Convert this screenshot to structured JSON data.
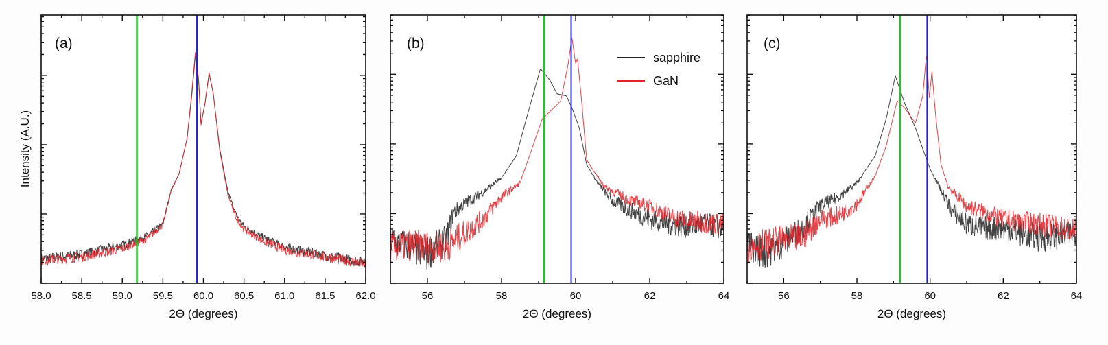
{
  "chart_data": [
    {
      "type": "line",
      "panel_label": "(a)",
      "xlabel": "2Θ (degrees)",
      "ylabel": "Intensity (A.U.)",
      "yscale": "log",
      "y_units_note": "log10 intensity (arbitrary)",
      "xlim": [
        58.0,
        62.0
      ],
      "ylim": [
        0,
        3.87
      ],
      "xticks": [
        58.0,
        58.5,
        59.0,
        59.5,
        60.0,
        60.5,
        61.0,
        61.5,
        62.0
      ],
      "xtick_labels": [
        "58.0",
        "58.5",
        "59.0",
        "59.5",
        "60.0",
        "60.5",
        "61.0",
        "61.5",
        "62.0"
      ],
      "xminor_step": 0.25,
      "reference_lines": [
        {
          "x": 59.18,
          "color": "#22c32a"
        },
        {
          "x": 59.92,
          "color": "#2222d6"
        }
      ],
      "legend": null,
      "series": [
        {
          "name": "sapphire",
          "color": "#222222",
          "x": [
            58.0,
            58.5,
            59.0,
            59.3,
            59.5,
            59.6,
            59.7,
            59.8,
            59.86,
            59.9,
            59.94,
            59.97,
            60.02,
            60.07,
            60.12,
            60.2,
            60.3,
            60.4,
            60.5,
            60.75,
            61.0,
            61.5,
            62.0
          ],
          "y": [
            0.35,
            0.42,
            0.55,
            0.68,
            0.85,
            1.34,
            1.58,
            2.1,
            2.75,
            3.28,
            2.95,
            2.3,
            2.6,
            3.02,
            2.75,
            1.95,
            1.33,
            1.0,
            0.82,
            0.65,
            0.52,
            0.4,
            0.3
          ]
        },
        {
          "name": "GaN",
          "color": "#e0242a",
          "x": [
            58.0,
            58.5,
            59.0,
            59.3,
            59.5,
            59.6,
            59.7,
            59.8,
            59.86,
            59.9,
            59.94,
            59.97,
            60.02,
            60.07,
            60.12,
            60.2,
            60.3,
            60.4,
            60.5,
            60.75,
            61.0,
            61.5,
            62.0
          ],
          "y": [
            0.33,
            0.38,
            0.5,
            0.64,
            0.84,
            1.33,
            1.58,
            2.1,
            2.8,
            3.33,
            2.95,
            2.28,
            2.6,
            3.04,
            2.75,
            1.92,
            1.28,
            0.95,
            0.78,
            0.6,
            0.48,
            0.38,
            0.28
          ]
        }
      ]
    },
    {
      "type": "line",
      "panel_label": "(b)",
      "xlabel": "2Θ (degrees)",
      "yscale": "log",
      "xlim": [
        55,
        64
      ],
      "ylim": [
        0,
        3.85
      ],
      "xticks": [
        56,
        58,
        60,
        62,
        64
      ],
      "xtick_labels": [
        "56",
        "58",
        "60",
        "62",
        "64"
      ],
      "xminor_step": 1,
      "reference_lines": [
        {
          "x": 59.15,
          "color": "#22c32a"
        },
        {
          "x": 59.88,
          "color": "#2222d6"
        }
      ],
      "legend": {
        "position": "top-right",
        "entries": [
          "sapphire",
          "GaN"
        ]
      },
      "series": [
        {
          "name": "sapphire",
          "color": "#222222",
          "x": [
            55,
            55.5,
            56,
            56.5,
            56.7,
            57,
            57.5,
            58,
            58.4,
            58.7,
            59.05,
            59.3,
            59.5,
            59.75,
            59.9,
            60.1,
            60.3,
            60.6,
            61,
            61.5,
            62,
            62.5,
            63,
            63.5,
            64
          ],
          "y": [
            0.62,
            0.52,
            0.42,
            0.62,
            1.01,
            1.14,
            1.31,
            1.51,
            1.83,
            2.42,
            3.08,
            2.92,
            2.72,
            2.69,
            2.52,
            2.23,
            1.7,
            1.44,
            1.18,
            1.04,
            0.92,
            0.85,
            0.82,
            0.85,
            0.79
          ]
        },
        {
          "name": "GaN",
          "color": "#e0242a",
          "x": [
            55,
            55.5,
            56,
            56.5,
            57,
            57.5,
            58,
            58.5,
            58.8,
            59.1,
            59.3,
            59.6,
            59.8,
            59.9,
            60.0,
            60.05,
            60.15,
            60.3,
            60.5,
            60.8,
            61.5,
            62,
            62.5,
            63,
            64
          ],
          "y": [
            0.52,
            0.55,
            0.52,
            0.52,
            0.72,
            0.92,
            1.24,
            1.44,
            1.9,
            2.36,
            2.46,
            2.62,
            3.15,
            3.53,
            3.15,
            3.23,
            2.69,
            1.77,
            1.6,
            1.38,
            1.18,
            1.11,
            0.97,
            0.9,
            0.85
          ]
        }
      ]
    },
    {
      "type": "line",
      "panel_label": "(c)",
      "xlabel": "2Θ (degrees)",
      "yscale": "log",
      "xlim": [
        55,
        64
      ],
      "ylim": [
        0,
        3.85
      ],
      "xticks": [
        56,
        58,
        60,
        62,
        64
      ],
      "xtick_labels": [
        "56",
        "58",
        "60",
        "62",
        "64"
      ],
      "xminor_step": 1,
      "reference_lines": [
        {
          "x": 59.18,
          "color": "#22c32a"
        },
        {
          "x": 59.92,
          "color": "#2222d6"
        }
      ],
      "legend": null,
      "series": [
        {
          "name": "sapphire",
          "color": "#222222",
          "x": [
            55,
            55.5,
            56,
            56.5,
            57,
            57.5,
            58,
            58.5,
            58.8,
            59.05,
            59.3,
            59.6,
            59.8,
            60.0,
            60.3,
            60.6,
            61,
            61.5,
            62,
            63,
            64
          ],
          "y": [
            0.55,
            0.45,
            0.59,
            0.79,
            1.11,
            1.24,
            1.44,
            1.83,
            2.36,
            2.98,
            2.59,
            2.23,
            1.93,
            1.64,
            1.34,
            1.04,
            0.85,
            0.79,
            0.79,
            0.65,
            0.72
          ]
        },
        {
          "name": "GaN",
          "color": "#e0242a",
          "x": [
            55,
            56,
            56.5,
            57,
            57.5,
            58,
            58.5,
            58.8,
            59.1,
            59.3,
            59.6,
            59.8,
            59.9,
            59.98,
            60.05,
            60.15,
            60.3,
            60.5,
            61,
            62,
            63,
            64
          ],
          "y": [
            0.52,
            0.62,
            0.65,
            0.92,
            0.97,
            1.14,
            1.54,
            1.97,
            2.62,
            2.52,
            2.3,
            2.69,
            3.28,
            2.66,
            3.05,
            2.42,
            1.7,
            1.38,
            1.11,
            0.92,
            0.85,
            0.75
          ]
        }
      ]
    }
  ]
}
